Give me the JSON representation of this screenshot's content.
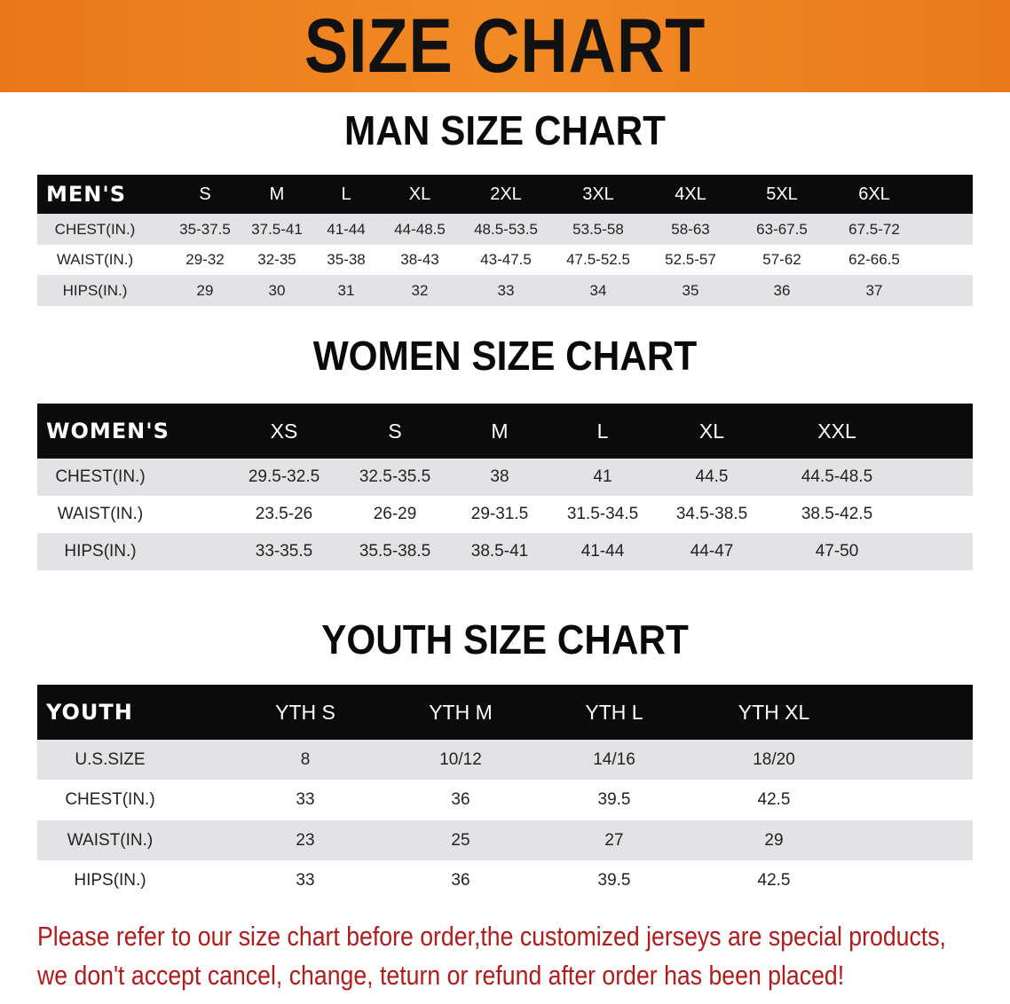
{
  "banner_title": "SIZE CHART",
  "men": {
    "title": "MAN SIZE CHART",
    "header": [
      "MEN'S",
      "S",
      "M",
      "L",
      "XL",
      "2XL",
      "3XL",
      "4XL",
      "5XL",
      "6XL"
    ],
    "rows": [
      [
        "CHEST(IN.)",
        "35-37.5",
        "37.5-41",
        "41-44",
        "44-48.5",
        "48.5-53.5",
        "53.5-58",
        "58-63",
        "63-67.5",
        "67.5-72"
      ],
      [
        "WAIST(IN.)",
        "29-32",
        "32-35",
        "35-38",
        "38-43",
        "43-47.5",
        "47.5-52.5",
        "52.5-57",
        "57-62",
        "62-66.5"
      ],
      [
        "HIPS(IN.)",
        "29",
        "30",
        "31",
        "32",
        "33",
        "34",
        "35",
        "36",
        "37"
      ]
    ]
  },
  "women": {
    "title": "WOMEN SIZE CHART",
    "header": [
      "WOMEN'S",
      "XS",
      "S",
      "M",
      "L",
      "XL",
      "XXL"
    ],
    "rows": [
      [
        "CHEST(IN.)",
        "29.5-32.5",
        "32.5-35.5",
        "38",
        "41",
        "44.5",
        "44.5-48.5"
      ],
      [
        "WAIST(IN.)",
        "23.5-26",
        "26-29",
        "29-31.5",
        "31.5-34.5",
        "34.5-38.5",
        "38.5-42.5"
      ],
      [
        "HIPS(IN.)",
        "33-35.5",
        "35.5-38.5",
        "38.5-41",
        "41-44",
        "44-47",
        "47-50"
      ]
    ]
  },
  "youth": {
    "title": "YOUTH SIZE CHART",
    "header": [
      "YOUTH",
      "YTH S",
      "YTH M",
      "YTH L",
      "YTH XL"
    ],
    "rows": [
      [
        "U.S.SIZE",
        "8",
        "10/12",
        "14/16",
        "18/20"
      ],
      [
        "CHEST(IN.)",
        "33",
        "36",
        "39.5",
        "42.5"
      ],
      [
        "WAIST(IN.)",
        "23",
        "25",
        "27",
        "29"
      ],
      [
        "HIPS(IN.)",
        "33",
        "36",
        "39.5",
        "42.5"
      ]
    ]
  },
  "notice": {
    "line1": "Please refer to our size chart before order,the customized jerseys are special products,",
    "line2": "we don't accept cancel, change, teturn or refund after order has been placed!"
  },
  "colors": {
    "banner": "#f0841f",
    "header_row": "#0b0b0b",
    "stripe": "#e3e3e5",
    "notice": "#b01c1c"
  }
}
